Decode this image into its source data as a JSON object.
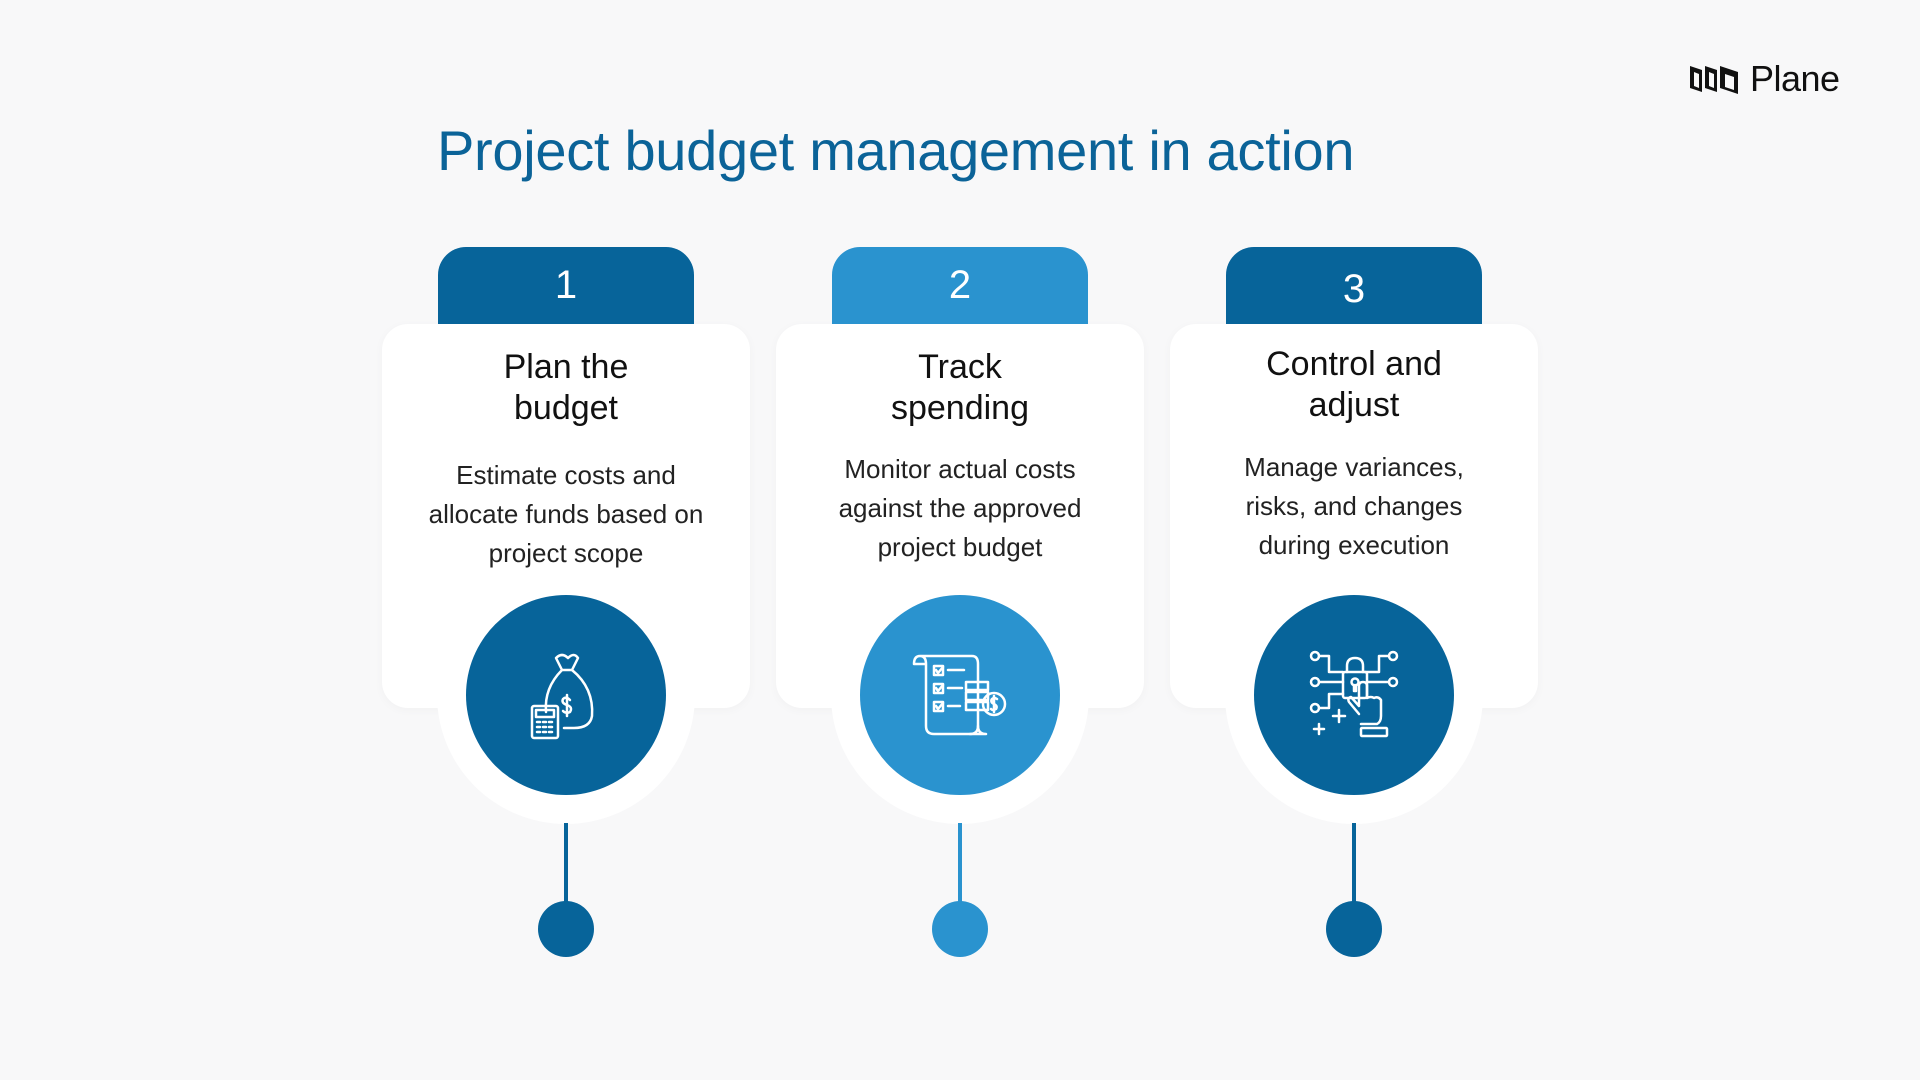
{
  "brand": {
    "name": "Plane"
  },
  "title": "Project budget management in action",
  "colors": {
    "dark": "#07649a",
    "light": "#2a93cf",
    "background": "#f8f8f9"
  },
  "steps": [
    {
      "number": "1",
      "heading_line1": "Plan the",
      "heading_line2": "budget",
      "desc_line1": "Estimate costs and",
      "desc_line2": "allocate funds based on",
      "desc_line3": "project scope",
      "icon": "money-bag-calculator-icon",
      "color": "dark"
    },
    {
      "number": "2",
      "heading_line1": "Track",
      "heading_line2": "spending",
      "desc_line1": "Monitor actual costs",
      "desc_line2": "against the approved",
      "desc_line3": "project budget",
      "icon": "checklist-scroll-dollar-icon",
      "color": "light"
    },
    {
      "number": "3",
      "heading_line1": "Control and",
      "heading_line2": "adjust",
      "desc_line1": "Manage variances,",
      "desc_line2": "risks, and changes",
      "desc_line3": "during execution",
      "icon": "lock-circuit-hand-icon",
      "color": "dark"
    }
  ]
}
